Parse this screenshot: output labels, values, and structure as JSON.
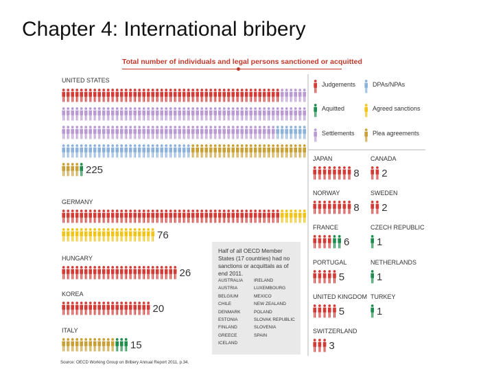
{
  "slide_title": "Chapter 4: International bribery",
  "chart_title": "Total number of individuals and legal persons sanctioned or acquitted",
  "source": "Source: OECD Working Group on Bribery Annual Report 2011, p.34.",
  "colors": {
    "Judgements": "#d23b36",
    "DPAs/NPAs": "#8cb2dc",
    "Aquitted": "#1e8c4c",
    "Agreed sanctions": "#f0c419",
    "Settlements": "#b99ad3",
    "Plea agreements": "#c9a037"
  },
  "note": {
    "text": "Half of all OECD Member States (17 countries) had no sanctions or acquittals as of end 2011.",
    "countries_col1": [
      "AUSTRALIA",
      "AUSTRIA",
      "BELGIUM",
      "CHILE",
      "DENMARK",
      "ESTONIA",
      "FINLAND",
      "GREECE",
      "ICELAND"
    ],
    "countries_col2": [
      "IRELAND",
      "LUXEMBOURG",
      "MEXICO",
      "NEW ZEALAND",
      "POLAND",
      "SLOVAK REPUBLIC",
      "SLOVENIA",
      "SPAIN"
    ]
  },
  "chart_data": {
    "type": "pictogram",
    "title": "Total number of individuals and legal persons sanctioned or acquitted",
    "unit": "one figure = one individual or legal person",
    "legend": [
      "Judgements",
      "DPAs/NPAs",
      "Aquitted",
      "Agreed sanctions",
      "Settlements",
      "Plea agreements"
    ],
    "countries": [
      {
        "name": "UNITED STATES",
        "total": 225,
        "composition": [
          [
            "Judgements",
            49
          ],
          [
            "Settlements",
            109
          ],
          [
            "DPAs/NPAs",
            36
          ],
          [
            "Plea agreements",
            30
          ],
          [
            "Aquitted",
            1
          ]
        ]
      },
      {
        "name": "GERMANY",
        "total": 76,
        "composition": [
          [
            "Judgements",
            49
          ],
          [
            "Agreed sanctions",
            27
          ]
        ]
      },
      {
        "name": "HUNGARY",
        "total": 26,
        "composition": [
          [
            "Judgements",
            26
          ]
        ]
      },
      {
        "name": "KOREA",
        "total": 20,
        "composition": [
          [
            "Judgements",
            20
          ]
        ]
      },
      {
        "name": "ITALY",
        "total": 15,
        "composition": [
          [
            "Plea agreements",
            12
          ],
          [
            "Aquitted",
            3
          ]
        ]
      },
      {
        "name": "JAPAN",
        "total": 8,
        "composition": [
          [
            "Judgements",
            8
          ]
        ]
      },
      {
        "name": "CANADA",
        "total": 2,
        "composition": [
          [
            "Judgements",
            2
          ]
        ]
      },
      {
        "name": "NORWAY",
        "total": 8,
        "composition": [
          [
            "Judgements",
            8
          ]
        ]
      },
      {
        "name": "SWEDEN",
        "total": 2,
        "composition": [
          [
            "Judgements",
            2
          ]
        ]
      },
      {
        "name": "FRANCE",
        "total": 6,
        "composition": [
          [
            "Judgements",
            4
          ],
          [
            "Aquitted",
            2
          ]
        ]
      },
      {
        "name": "CZECH REPUBLIC",
        "total": 1,
        "composition": [
          [
            "Aquitted",
            1
          ]
        ]
      },
      {
        "name": "PORTUGAL",
        "total": 5,
        "composition": [
          [
            "Judgements",
            5
          ]
        ]
      },
      {
        "name": "NETHERLANDS",
        "total": 1,
        "composition": [
          [
            "Aquitted",
            1
          ]
        ]
      },
      {
        "name": "UNITED KINGDOM",
        "total": 5,
        "composition": [
          [
            "Judgements",
            5
          ]
        ]
      },
      {
        "name": "TURKEY",
        "total": 1,
        "composition": [
          [
            "Aquitted",
            1
          ]
        ]
      },
      {
        "name": "SWITZERLAND",
        "total": 3,
        "composition": [
          [
            "Judgements",
            3
          ]
        ]
      }
    ]
  }
}
